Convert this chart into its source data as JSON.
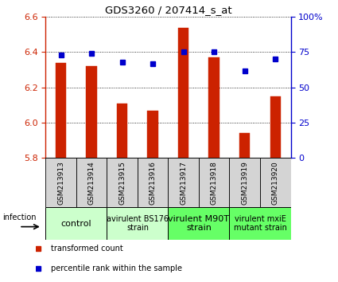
{
  "title": "GDS3260 / 207414_s_at",
  "samples": [
    "GSM213913",
    "GSM213914",
    "GSM213915",
    "GSM213916",
    "GSM213917",
    "GSM213918",
    "GSM213919",
    "GSM213920"
  ],
  "transformed_counts": [
    6.34,
    6.32,
    6.11,
    6.07,
    6.54,
    6.37,
    5.94,
    6.15
  ],
  "percentile_ranks": [
    73,
    74,
    68,
    67,
    75,
    75,
    62,
    70
  ],
  "ylim_left": [
    5.8,
    6.6
  ],
  "yticks_left": [
    5.8,
    6.0,
    6.2,
    6.4,
    6.6
  ],
  "ylim_right": [
    0,
    100
  ],
  "yticks_right": [
    0,
    25,
    50,
    75,
    100
  ],
  "yticklabels_right": [
    "0",
    "25",
    "50",
    "75",
    "100%"
  ],
  "bar_color": "#cc2200",
  "dot_color": "#0000cc",
  "bar_bottom": 5.8,
  "groups": [
    {
      "label": "control",
      "start": 0,
      "end": 2,
      "color": "#ccffcc",
      "fontsize": 8
    },
    {
      "label": "avirulent BS176\nstrain",
      "start": 2,
      "end": 4,
      "color": "#ccffcc",
      "fontsize": 7
    },
    {
      "label": "virulent M90T\nstrain",
      "start": 4,
      "end": 6,
      "color": "#66ff66",
      "fontsize": 8
    },
    {
      "label": "virulent mxiE\nmutant strain",
      "start": 6,
      "end": 8,
      "color": "#66ff66",
      "fontsize": 7
    }
  ],
  "infection_label": "infection",
  "legend_items": [
    {
      "color": "#cc2200",
      "label": "transformed count"
    },
    {
      "color": "#0000cc",
      "label": "percentile rank within the sample"
    }
  ],
  "tick_color_left": "#cc2200",
  "tick_color_right": "#0000cc",
  "sample_box_color": "#d4d4d4",
  "bar_width": 0.35
}
